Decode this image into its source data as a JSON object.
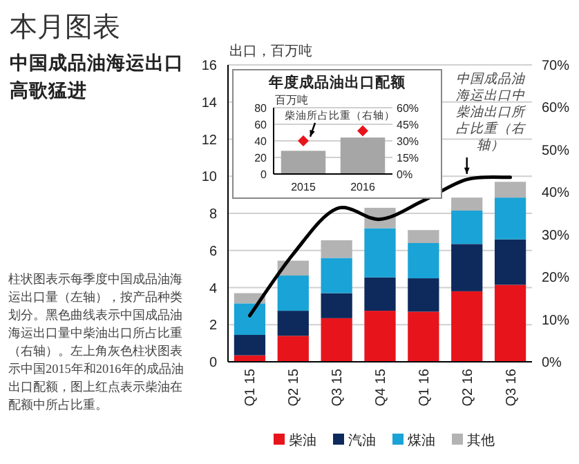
{
  "chart_data": [
    {
      "type": "bar",
      "title": "本月图表",
      "subtitle": "中国成品油海运出口高歌猛进",
      "ylabel": "出口，百万吨",
      "categories": [
        "Q1 15",
        "Q2 15",
        "Q3 15",
        "Q4 15",
        "Q1 16",
        "Q2 16",
        "Q3 16"
      ],
      "stacked": true,
      "series": [
        {
          "name": "柴油",
          "color": "#e8141b",
          "values": [
            0.35,
            1.4,
            2.35,
            2.75,
            2.7,
            3.8,
            4.15
          ]
        },
        {
          "name": "汽油",
          "color": "#0e2a5c",
          "values": [
            1.1,
            1.35,
            1.35,
            1.8,
            1.8,
            2.55,
            2.45
          ]
        },
        {
          "name": "煤油",
          "color": "#1aa3d6",
          "values": [
            1.7,
            1.9,
            1.9,
            2.65,
            1.9,
            1.8,
            2.25
          ]
        },
        {
          "name": "其他",
          "color": "#b3b3b3",
          "values": [
            0.55,
            0.8,
            0.95,
            1.1,
            0.7,
            0.7,
            0.85
          ]
        },
        {
          "type": "line",
          "axis": "y2",
          "color": "#000000",
          "values": [
            10.9,
            25.4,
            36.1,
            33.6,
            38,
            43,
            43.5
          ]
        }
      ],
      "ylim": [
        0,
        16
      ],
      "yticks": [
        0,
        2,
        4,
        6,
        8,
        10,
        12,
        14,
        16
      ],
      "y2lim": [
        0,
        70
      ],
      "y2ticks": [
        {
          "value": 0,
          "label": "0%"
        },
        {
          "value": 10,
          "label": "10%"
        },
        {
          "value": 20,
          "label": "20%"
        },
        {
          "value": 30,
          "label": "30%"
        },
        {
          "value": 40,
          "label": "40%"
        },
        {
          "value": 50,
          "label": "50%"
        },
        {
          "value": 60,
          "label": "60%"
        },
        {
          "value": 70,
          "label": "70%"
        }
      ],
      "grid": "y",
      "legend": "bottom",
      "annotations": [
        "柱状图表示每季度中国成品油海运出口量（左轴），按产品种类划分。黑色曲线表示中国成品油海运出口量中柴油出口所占比重（右轴）。左上角灰色柱状图表示中国2015年和2016年的成品油出口配额，图上红点表示柴油在配额中所占比重。",
        "中国成品油海运出口中柴油出口所占比重（右轴）"
      ]
    },
    {
      "type": "bar",
      "title": "年度成品油出口配额",
      "ylabel": "百万吨",
      "categories": [
        "2015",
        "2016"
      ],
      "series": [
        {
          "color": "#a6a6a6",
          "values": [
            28,
            44
          ]
        },
        {
          "type": "scatter",
          "axis": "y2",
          "color": "#e8141b",
          "values": [
            30,
            39
          ]
        }
      ],
      "marker": "diamond",
      "ylim": [
        0,
        80
      ],
      "yticks": [
        0,
        20,
        40,
        60,
        80
      ],
      "y2lim": [
        0,
        60
      ],
      "y2ticks": [
        {
          "value": 0,
          "label": "0%"
        },
        {
          "value": 15,
          "label": "15%"
        },
        {
          "value": 30,
          "label": "30%"
        },
        {
          "value": 45,
          "label": "45%"
        },
        {
          "value": 60,
          "label": "60%"
        }
      ],
      "grid": "y",
      "annotations": [
        {
          "text": "柴油所占比重（右轴）",
          "x": "2015",
          "y": 30
        }
      ]
    }
  ]
}
